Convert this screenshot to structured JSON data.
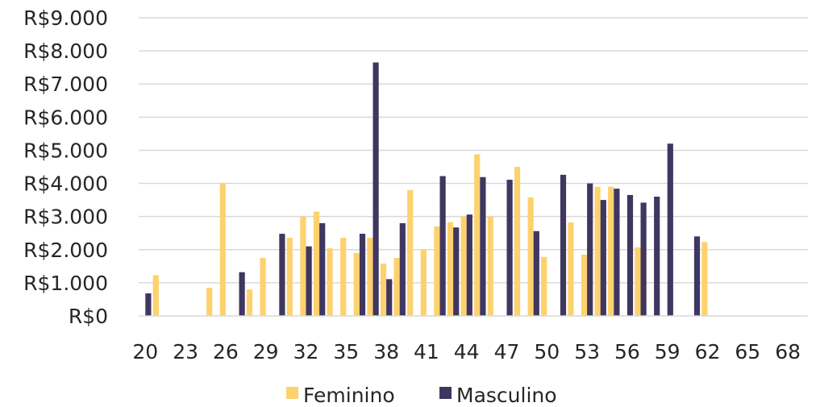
{
  "chart_data": {
    "type": "bar",
    "x": [
      20,
      21,
      22,
      23,
      24,
      25,
      26,
      27,
      28,
      29,
      30,
      31,
      32,
      33,
      34,
      35,
      36,
      37,
      38,
      39,
      40,
      41,
      42,
      43,
      44,
      45,
      46,
      47,
      48,
      49,
      50,
      51,
      52,
      53,
      54,
      55,
      56,
      57,
      58,
      59,
      60,
      61,
      62,
      63,
      64,
      65,
      66,
      67,
      68,
      69
    ],
    "x_tick_labels": [
      "20",
      "23",
      "26",
      "29",
      "32",
      "35",
      "38",
      "41",
      "44",
      "47",
      "50",
      "53",
      "56",
      "59",
      "62",
      "65",
      "68"
    ],
    "y_tick_labels": [
      "R$0",
      "R$1.000",
      "R$2.000",
      "R$3.000",
      "R$4.000",
      "R$5.000",
      "R$6.000",
      "R$7.000",
      "R$8.000",
      "R$9.000"
    ],
    "ylim": [
      0,
      9000
    ],
    "grid": true,
    "legend_position": "bottom",
    "series": [
      {
        "name": "Feminino",
        "color": "#FDD26E",
        "values": [
          null,
          1230,
          null,
          null,
          null,
          850,
          4000,
          null,
          800,
          1750,
          null,
          2360,
          3000,
          3150,
          2040,
          2360,
          1900,
          2360,
          1580,
          1750,
          3800,
          2000,
          2700,
          2830,
          3000,
          4880,
          3000,
          null,
          4500,
          3580,
          1780,
          null,
          2820,
          1850,
          3900,
          3900,
          null,
          2070,
          null,
          null,
          null,
          null,
          2230,
          null,
          null,
          null,
          null,
          null,
          null,
          null
        ]
      },
      {
        "name": "Masculino",
        "color": "#3F3760",
        "values": [
          680,
          null,
          null,
          null,
          null,
          null,
          null,
          1320,
          null,
          null,
          2480,
          null,
          2100,
          2800,
          null,
          null,
          2480,
          7650,
          1110,
          2800,
          null,
          null,
          4220,
          2670,
          3060,
          4190,
          null,
          4110,
          null,
          2560,
          null,
          4260,
          null,
          4000,
          3500,
          3840,
          3650,
          3420,
          3600,
          5200,
          null,
          2400,
          null,
          null,
          null,
          null,
          null,
          null,
          null,
          null
        ]
      }
    ]
  }
}
